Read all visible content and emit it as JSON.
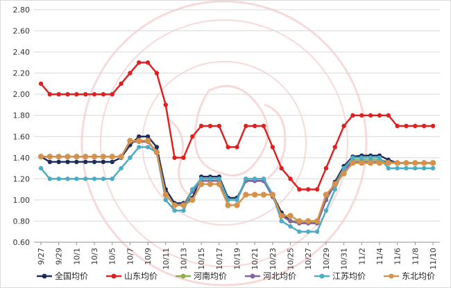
{
  "chart_data": {
    "type": "line",
    "title": "",
    "xlabel": "",
    "ylabel": "",
    "ylim": [
      0.6,
      2.8
    ],
    "y_ticks": [
      "0.60",
      "0.80",
      "1.00",
      "1.20",
      "1.40",
      "1.60",
      "1.80",
      "2.00",
      "2.20",
      "2.40",
      "2.60",
      "2.80"
    ],
    "x_tick_labels": [
      "9/27",
      "9/29",
      "10/1",
      "10/3",
      "10/5",
      "10/7",
      "10/9",
      "10/11",
      "10/13",
      "10/15",
      "10/17",
      "10/19",
      "10/21",
      "10/23",
      "10/25",
      "10/27",
      "10/29",
      "10/31",
      "11/2",
      "11/4",
      "11/6",
      "11/8",
      "11/10"
    ],
    "categories": [
      "9/27",
      "9/28",
      "9/29",
      "9/30",
      "10/1",
      "10/2",
      "10/3",
      "10/4",
      "10/5",
      "10/6",
      "10/7",
      "10/8",
      "10/9",
      "10/10",
      "10/11",
      "10/12",
      "10/13",
      "10/14",
      "10/15",
      "10/16",
      "10/17",
      "10/18",
      "10/19",
      "10/20",
      "10/21",
      "10/22",
      "10/23",
      "10/24",
      "10/25",
      "10/26",
      "10/27",
      "10/28",
      "10/29",
      "10/30",
      "10/31",
      "11/1",
      "11/2",
      "11/3",
      "11/4",
      "11/5",
      "11/6",
      "11/7",
      "11/8",
      "11/9",
      "11/10"
    ],
    "grid": "horizontal",
    "legend_position": "bottom",
    "series": [
      {
        "name": "全国均价",
        "color": "#1f2d5a",
        "values": [
          1.41,
          1.36,
          1.36,
          1.36,
          1.36,
          1.36,
          1.36,
          1.36,
          1.36,
          1.4,
          1.52,
          1.6,
          1.6,
          1.5,
          1.1,
          0.97,
          0.97,
          1.02,
          1.22,
          1.22,
          1.22,
          1.02,
          1.02,
          1.18,
          1.18,
          1.18,
          1.05,
          0.88,
          0.8,
          0.78,
          0.78,
          0.78,
          1.0,
          1.17,
          1.32,
          1.41,
          1.42,
          1.42,
          1.42,
          1.38,
          1.35,
          1.35,
          1.35,
          1.35,
          1.35
        ]
      },
      {
        "name": "山东均价",
        "color": "#e02020",
        "values": [
          2.1,
          2.0,
          2.0,
          2.0,
          2.0,
          2.0,
          2.0,
          2.0,
          2.0,
          2.1,
          2.2,
          2.3,
          2.3,
          2.2,
          1.9,
          1.4,
          1.4,
          1.6,
          1.7,
          1.7,
          1.7,
          1.5,
          1.5,
          1.7,
          1.7,
          1.7,
          1.5,
          1.3,
          1.2,
          1.1,
          1.1,
          1.1,
          1.3,
          1.5,
          1.7,
          1.8,
          1.8,
          1.8,
          1.8,
          1.8,
          1.7,
          1.7,
          1.7,
          1.7,
          1.7
        ]
      },
      {
        "name": "河南均价",
        "color": "#8cb04c",
        "values": [
          1.41,
          1.41,
          1.41,
          1.41,
          1.41,
          1.41,
          1.41,
          1.41,
          1.41,
          1.41,
          1.56,
          1.56,
          1.56,
          1.45,
          1.05,
          0.95,
          0.95,
          1.1,
          1.2,
          1.2,
          1.2,
          1.0,
          1.0,
          1.2,
          1.2,
          1.2,
          1.05,
          0.85,
          0.8,
          0.8,
          0.8,
          0.8,
          1.0,
          1.15,
          1.3,
          1.38,
          1.38,
          1.38,
          1.38,
          1.36,
          1.35,
          1.35,
          1.35,
          1.35,
          1.35
        ]
      },
      {
        "name": "河北均价",
        "color": "#8064a2",
        "values": [
          1.41,
          1.41,
          1.41,
          1.41,
          1.41,
          1.41,
          1.41,
          1.41,
          1.41,
          1.41,
          1.55,
          1.55,
          1.55,
          1.45,
          1.05,
          0.95,
          0.95,
          1.08,
          1.18,
          1.18,
          1.18,
          1.0,
          1.0,
          1.18,
          1.18,
          1.18,
          1.03,
          0.85,
          0.8,
          0.78,
          0.78,
          0.78,
          1.0,
          1.15,
          1.28,
          1.36,
          1.36,
          1.36,
          1.36,
          1.36,
          1.35,
          1.35,
          1.35,
          1.35,
          1.35
        ]
      },
      {
        "name": "江苏均价",
        "color": "#4bacc6",
        "values": [
          1.3,
          1.2,
          1.2,
          1.2,
          1.2,
          1.2,
          1.2,
          1.2,
          1.2,
          1.3,
          1.4,
          1.5,
          1.5,
          1.45,
          1.0,
          0.9,
          0.9,
          1.1,
          1.2,
          1.2,
          1.2,
          1.0,
          1.0,
          1.2,
          1.2,
          1.2,
          1.05,
          0.8,
          0.75,
          0.7,
          0.7,
          0.7,
          0.9,
          1.1,
          1.3,
          1.4,
          1.4,
          1.4,
          1.4,
          1.3,
          1.3,
          1.3,
          1.3,
          1.3,
          1.3
        ]
      },
      {
        "name": "东北均价",
        "color": "#d4924c",
        "values": [
          1.41,
          1.41,
          1.41,
          1.41,
          1.41,
          1.41,
          1.41,
          1.41,
          1.41,
          1.41,
          1.56,
          1.56,
          1.56,
          1.45,
          1.05,
          0.95,
          0.95,
          1.0,
          1.15,
          1.15,
          1.15,
          0.95,
          0.95,
          1.05,
          1.05,
          1.05,
          1.05,
          0.85,
          0.85,
          0.8,
          0.8,
          0.8,
          1.05,
          1.15,
          1.25,
          1.35,
          1.35,
          1.35,
          1.35,
          1.35,
          1.35,
          1.35,
          1.35,
          1.35,
          1.35
        ]
      }
    ]
  }
}
